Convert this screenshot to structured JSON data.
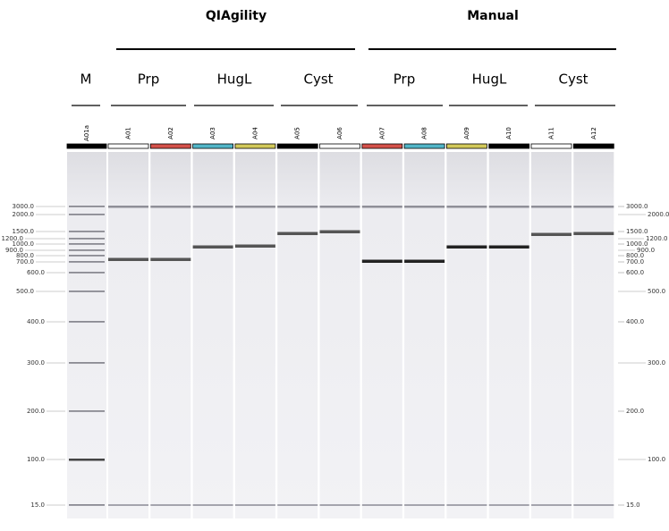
{
  "groups": [
    {
      "title": "QIAgility"
    },
    {
      "title": "Manual"
    }
  ],
  "samples": [
    "M",
    "Prp",
    "HugL",
    "Cyst",
    "Prp",
    "HugL",
    "Cyst"
  ],
  "lanes": [
    {
      "label": "A01a",
      "color": "#000000"
    },
    {
      "label": "A01",
      "color": "#ffffff"
    },
    {
      "label": "A02",
      "color": "#d4514a"
    },
    {
      "label": "A03",
      "color": "#52b6c8"
    },
    {
      "label": "A04",
      "color": "#d2c95a"
    },
    {
      "label": "A05",
      "color": "#000000"
    },
    {
      "label": "A06",
      "color": "#ffffff"
    },
    {
      "label": "A07",
      "color": "#d4514a"
    },
    {
      "label": "A08",
      "color": "#52b6c8"
    },
    {
      "label": "A09",
      "color": "#d2c95a"
    },
    {
      "label": "A10",
      "color": "#000000"
    },
    {
      "label": "A11",
      "color": "#ffffff"
    },
    {
      "label": "A12",
      "color": "#000000"
    }
  ],
  "size_markers": [
    "3000.0",
    "2000.0",
    "1500.0",
    "1200.0",
    "1000.0",
    "900.0",
    "800.0",
    "700.0",
    "600.0",
    "500.0",
    "400.0",
    "300.0",
    "200.0",
    "100.0",
    "15.0"
  ]
}
